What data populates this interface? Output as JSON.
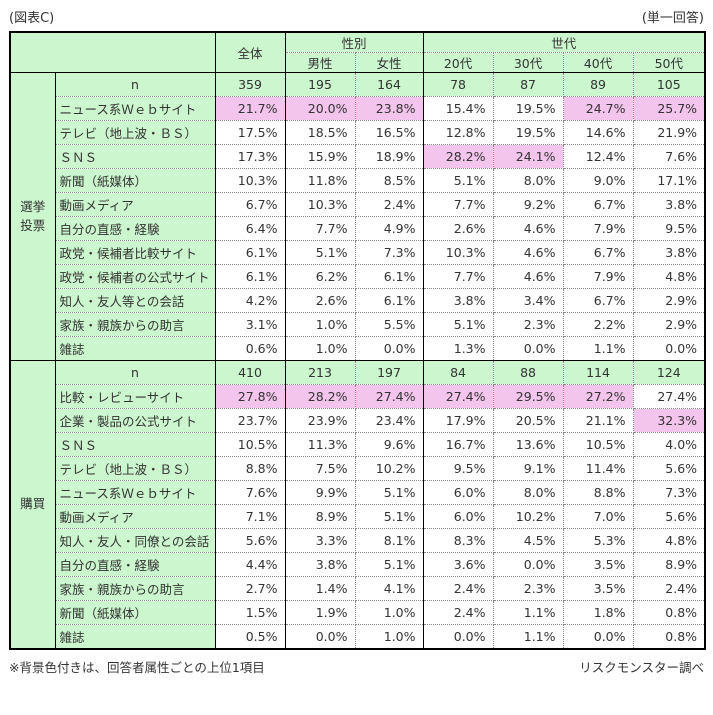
{
  "page": {
    "top_left": "(図表C)",
    "top_right": "(単一回答)",
    "footnote": "※背景色付きは、回答者属性ごとの上位1項目",
    "source": "リスクモンスター調べ"
  },
  "colors": {
    "header_green": "#CCF6CE",
    "highlight_pink": "#F3C4EC",
    "solid_border": "#000000",
    "dotted_border": "#888888"
  },
  "table": {
    "col_headers": {
      "overall": "全体",
      "gender_group": "性別",
      "gender": [
        "男性",
        "女性"
      ],
      "generation_group": "世代",
      "generation": [
        "20代",
        "30代",
        "40代",
        "50代"
      ]
    },
    "n_label": "n",
    "sections": [
      {
        "label": "選挙投票",
        "n": [
          "359",
          "195",
          "164",
          "78",
          "87",
          "89",
          "105"
        ],
        "rows": [
          {
            "label": "ニュース系Ｗｅｂサイト",
            "values": [
              "21.7%",
              "20.0%",
              "23.8%",
              "15.4%",
              "19.5%",
              "24.7%",
              "25.7%"
            ],
            "highlight": [
              true,
              true,
              true,
              false,
              false,
              true,
              true
            ]
          },
          {
            "label": "テレビ（地上波・ＢＳ）",
            "values": [
              "17.5%",
              "18.5%",
              "16.5%",
              "12.8%",
              "19.5%",
              "14.6%",
              "21.9%"
            ],
            "highlight": [
              false,
              false,
              false,
              false,
              false,
              false,
              false
            ]
          },
          {
            "label": "ＳＮＳ",
            "values": [
              "17.3%",
              "15.9%",
              "18.9%",
              "28.2%",
              "24.1%",
              "12.4%",
              "7.6%"
            ],
            "highlight": [
              false,
              false,
              false,
              true,
              true,
              false,
              false
            ]
          },
          {
            "label": "新聞（紙媒体）",
            "values": [
              "10.3%",
              "11.8%",
              "8.5%",
              "5.1%",
              "8.0%",
              "9.0%",
              "17.1%"
            ],
            "highlight": [
              false,
              false,
              false,
              false,
              false,
              false,
              false
            ]
          },
          {
            "label": "動画メディア",
            "values": [
              "6.7%",
              "10.3%",
              "2.4%",
              "7.7%",
              "9.2%",
              "6.7%",
              "3.8%"
            ],
            "highlight": [
              false,
              false,
              false,
              false,
              false,
              false,
              false
            ]
          },
          {
            "label": "自分の直感・経験",
            "values": [
              "6.4%",
              "7.7%",
              "4.9%",
              "2.6%",
              "4.6%",
              "7.9%",
              "9.5%"
            ],
            "highlight": [
              false,
              false,
              false,
              false,
              false,
              false,
              false
            ]
          },
          {
            "label": "政党・候補者比較サイト",
            "values": [
              "6.1%",
              "5.1%",
              "7.3%",
              "10.3%",
              "4.6%",
              "6.7%",
              "3.8%"
            ],
            "highlight": [
              false,
              false,
              false,
              false,
              false,
              false,
              false
            ]
          },
          {
            "label": "政党・候補者の公式サイト",
            "values": [
              "6.1%",
              "6.2%",
              "6.1%",
              "7.7%",
              "4.6%",
              "7.9%",
              "4.8%"
            ],
            "highlight": [
              false,
              false,
              false,
              false,
              false,
              false,
              false
            ]
          },
          {
            "label": "知人・友人等との会話",
            "values": [
              "4.2%",
              "2.6%",
              "6.1%",
              "3.8%",
              "3.4%",
              "6.7%",
              "2.9%"
            ],
            "highlight": [
              false,
              false,
              false,
              false,
              false,
              false,
              false
            ]
          },
          {
            "label": "家族・親族からの助言",
            "values": [
              "3.1%",
              "1.0%",
              "5.5%",
              "5.1%",
              "2.3%",
              "2.2%",
              "2.9%"
            ],
            "highlight": [
              false,
              false,
              false,
              false,
              false,
              false,
              false
            ]
          },
          {
            "label": "雑誌",
            "values": [
              "0.6%",
              "1.0%",
              "0.0%",
              "1.3%",
              "0.0%",
              "1.1%",
              "0.0%"
            ],
            "highlight": [
              false,
              false,
              false,
              false,
              false,
              false,
              false
            ]
          }
        ]
      },
      {
        "label": "購買",
        "n": [
          "410",
          "213",
          "197",
          "84",
          "88",
          "114",
          "124"
        ],
        "rows": [
          {
            "label": "比較・レビューサイト",
            "values": [
              "27.8%",
              "28.2%",
              "27.4%",
              "27.4%",
              "29.5%",
              "27.2%",
              "27.4%"
            ],
            "highlight": [
              true,
              true,
              true,
              true,
              true,
              true,
              false
            ]
          },
          {
            "label": "企業・製品の公式サイト",
            "values": [
              "23.7%",
              "23.9%",
              "23.4%",
              "17.9%",
              "20.5%",
              "21.1%",
              "32.3%"
            ],
            "highlight": [
              false,
              false,
              false,
              false,
              false,
              false,
              true
            ]
          },
          {
            "label": "ＳＮＳ",
            "values": [
              "10.5%",
              "11.3%",
              "9.6%",
              "16.7%",
              "13.6%",
              "10.5%",
              "4.0%"
            ],
            "highlight": [
              false,
              false,
              false,
              false,
              false,
              false,
              false
            ]
          },
          {
            "label": "テレビ（地上波・ＢＳ）",
            "values": [
              "8.8%",
              "7.5%",
              "10.2%",
              "9.5%",
              "9.1%",
              "11.4%",
              "5.6%"
            ],
            "highlight": [
              false,
              false,
              false,
              false,
              false,
              false,
              false
            ]
          },
          {
            "label": "ニュース系Ｗｅｂサイト",
            "values": [
              "7.6%",
              "9.9%",
              "5.1%",
              "6.0%",
              "8.0%",
              "8.8%",
              "7.3%"
            ],
            "highlight": [
              false,
              false,
              false,
              false,
              false,
              false,
              false
            ]
          },
          {
            "label": "動画メディア",
            "values": [
              "7.1%",
              "8.9%",
              "5.1%",
              "6.0%",
              "10.2%",
              "7.0%",
              "5.6%"
            ],
            "highlight": [
              false,
              false,
              false,
              false,
              false,
              false,
              false
            ]
          },
          {
            "label": "知人・友人・同僚との会話",
            "values": [
              "5.6%",
              "3.3%",
              "8.1%",
              "8.3%",
              "4.5%",
              "5.3%",
              "4.8%"
            ],
            "highlight": [
              false,
              false,
              false,
              false,
              false,
              false,
              false
            ]
          },
          {
            "label": "自分の直感・経験",
            "values": [
              "4.4%",
              "3.8%",
              "5.1%",
              "3.6%",
              "0.0%",
              "3.5%",
              "8.9%"
            ],
            "highlight": [
              false,
              false,
              false,
              false,
              false,
              false,
              false
            ]
          },
          {
            "label": "家族・親族からの助言",
            "values": [
              "2.7%",
              "1.4%",
              "4.1%",
              "2.4%",
              "2.3%",
              "3.5%",
              "2.4%"
            ],
            "highlight": [
              false,
              false,
              false,
              false,
              false,
              false,
              false
            ]
          },
          {
            "label": "新聞（紙媒体）",
            "values": [
              "1.5%",
              "1.9%",
              "1.0%",
              "2.4%",
              "1.1%",
              "1.8%",
              "0.8%"
            ],
            "highlight": [
              false,
              false,
              false,
              false,
              false,
              false,
              false
            ]
          },
          {
            "label": "雑誌",
            "values": [
              "0.5%",
              "0.0%",
              "1.0%",
              "0.0%",
              "1.1%",
              "0.0%",
              "0.8%"
            ],
            "highlight": [
              false,
              false,
              false,
              false,
              false,
              false,
              false
            ]
          }
        ]
      }
    ]
  }
}
